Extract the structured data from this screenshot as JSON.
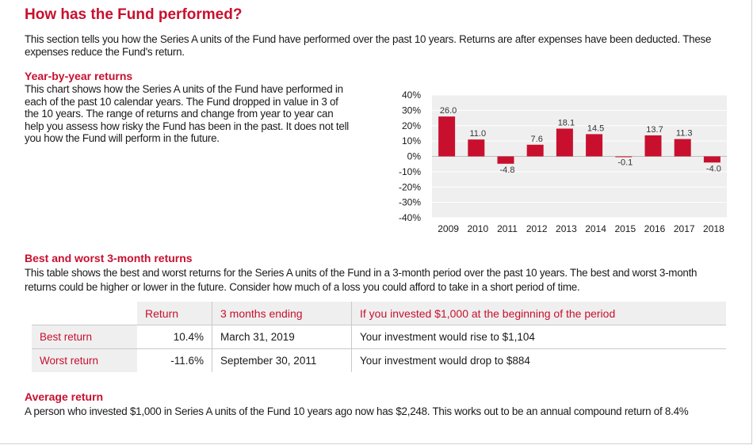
{
  "section_title": "How has the Fund performed?",
  "intro": "This section tells you how the Series A units of the Fund have performed over the past 10 years. Returns are after expenses have been deducted. These expenses reduce the Fund's return.",
  "yby": {
    "heading": "Year-by-year returns",
    "lines": [
      "This chart shows how the Series A units of the Fund have performed in",
      "each of the past 10 calendar years. The Fund dropped in value in 3 of",
      "the 10 years. The range of returns and change from year to year can",
      "help you assess how risky the Fund has been in the past. It does not tell",
      "you how the Fund will perform in the future."
    ]
  },
  "chart_data": {
    "type": "bar",
    "categories": [
      "2009",
      "2010",
      "2011",
      "2012",
      "2013",
      "2014",
      "2015",
      "2016",
      "2017",
      "2018"
    ],
    "values": [
      26.0,
      11.0,
      -4.8,
      7.6,
      18.1,
      14.5,
      -0.1,
      13.7,
      11.3,
      -4.0
    ],
    "data_labels": [
      "26.0",
      "11.0",
      "-4.8",
      "7.6",
      "18.1",
      "14.5",
      "-0.1",
      "13.7",
      "11.3",
      "-4.0"
    ],
    "ylim": [
      -40,
      40
    ],
    "yticks": [
      40,
      30,
      20,
      10,
      0,
      -10,
      -20,
      -30,
      -40
    ],
    "ytick_labels": [
      "40%",
      "30%",
      "20%",
      "10%",
      "0%",
      "-10%",
      "-20%",
      "-30%",
      "-40%"
    ],
    "grid": true,
    "bar_color": "#c8102e",
    "title": "",
    "xlabel": "",
    "ylabel": ""
  },
  "best_worst": {
    "heading": "Best and worst 3-month returns",
    "lines": [
      "This table shows the best and worst returns for the Series A units of the Fund in a 3-month period over the past 10 years. The best and worst 3-month",
      "returns could be higher or lower in the future. Consider how much of a loss you could afford to take in a short period of time."
    ],
    "table": {
      "headers": [
        "Return",
        "3 months ending",
        "If you invested $1,000 at the beginning of the period"
      ],
      "rows": [
        {
          "label": "Best return",
          "return": "10.4%",
          "ending": "March 31, 2019",
          "invested": "Your investment would rise to $1,104"
        },
        {
          "label": "Worst return",
          "return": "-11.6%",
          "ending": "September 30, 2011",
          "invested": "Your investment would drop to $884"
        }
      ]
    }
  },
  "average": {
    "heading": "Average return",
    "text": "A person who invested $1,000 in Series A units of the Fund 10 years ago now has $2,248. This works out to be an annual compound return of 8.4%"
  },
  "colors": {
    "accent": "#c8102e",
    "panel": "#efefef"
  }
}
